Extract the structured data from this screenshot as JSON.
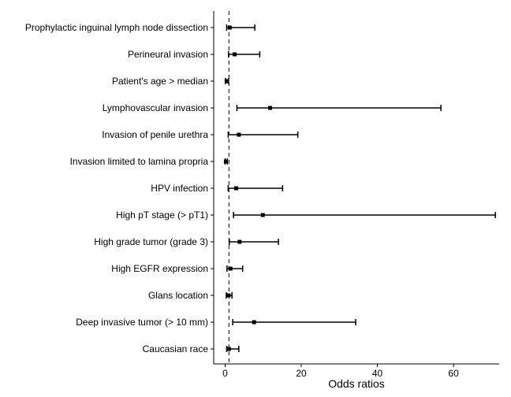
{
  "chart_data": {
    "type": "forest",
    "xlabel": "Odds ratios",
    "ylabel": "",
    "title": "",
    "xlim": [
      -3,
      72
    ],
    "xticks": [
      0,
      20,
      40,
      60
    ],
    "reference_line": 1,
    "grid": false,
    "legend": "none",
    "rows": [
      {
        "label": "Prophylactic inguinal lymph node dissection",
        "or": 1.2,
        "low": 0.4,
        "high": 7.8
      },
      {
        "label": "Perineural invasion",
        "or": 2.5,
        "low": 0.9,
        "high": 9.1
      },
      {
        "label": "Patient's age > median",
        "or": 0.4,
        "low": 0.1,
        "high": 0.9
      },
      {
        "label": "Lymphovascular invasion",
        "or": 11.8,
        "low": 3.1,
        "high": 56.7
      },
      {
        "label": "Invasion of penile urethra",
        "or": 3.6,
        "low": 0.8,
        "high": 19.1
      },
      {
        "label": "Invasion limited to lamina propria",
        "or": 0.2,
        "low": 0.0,
        "high": 0.6
      },
      {
        "label": "HPV infection",
        "or": 2.9,
        "low": 0.8,
        "high": 15.1
      },
      {
        "label": "High pT stage (> pT1)",
        "or": 9.9,
        "low": 2.2,
        "high": 71.0
      },
      {
        "label": "High grade tumor (grade 3)",
        "or": 3.8,
        "low": 1.1,
        "high": 14.0
      },
      {
        "label": "High EGFR expression",
        "or": 1.4,
        "low": 0.5,
        "high": 4.6
      },
      {
        "label": "Glans location",
        "or": 0.9,
        "low": 0.3,
        "high": 1.8
      },
      {
        "label": "Deep invasive tumor (> 10 mm)",
        "or": 7.6,
        "low": 2.0,
        "high": 34.3
      },
      {
        "label": "Caucasian race",
        "or": 1.0,
        "low": 0.4,
        "high": 3.6
      }
    ]
  }
}
